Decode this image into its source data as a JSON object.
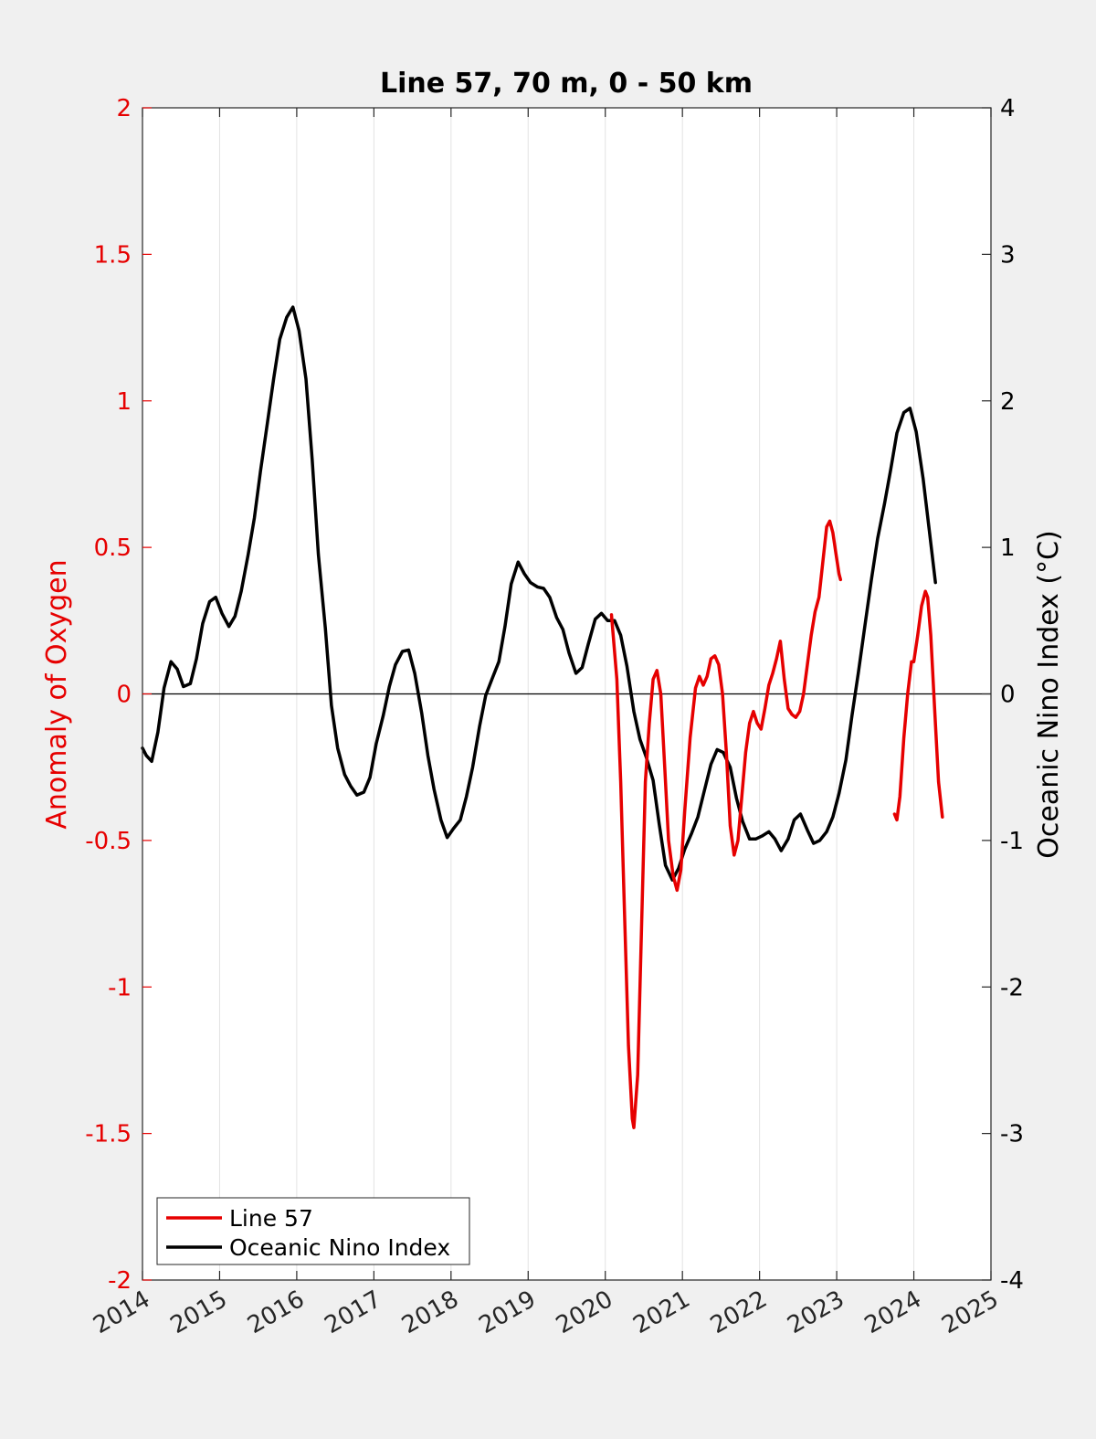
{
  "chart_data": {
    "type": "line",
    "title": "Line 57, 70 m, 0 - 50 km",
    "xlabel": "",
    "ylabel_left": "Anomaly of Oxygen",
    "ylabel_right": "Oceanic Nino Index (°C)",
    "xlim": [
      2014,
      2025
    ],
    "ylim_left": [
      -2,
      2
    ],
    "ylim_right": [
      -4,
      4
    ],
    "x_ticks": [
      "2014",
      "2015",
      "2016",
      "2017",
      "2018",
      "2019",
      "2020",
      "2021",
      "2022",
      "2023",
      "2024",
      "2025"
    ],
    "y_left_ticks": [
      "-2",
      "-1.5",
      "-1",
      "-0.5",
      "0",
      "0.5",
      "1",
      "1.5",
      "2"
    ],
    "y_right_ticks": [
      "-4",
      "-3",
      "-2",
      "-1",
      "0",
      "1",
      "2",
      "3",
      "4"
    ],
    "grid": "vertical",
    "legend_position": "bottom-left",
    "colors": {
      "line57": "#e60000",
      "oni": "#000000",
      "left_axis": "#e60000",
      "right_axis": "#000000"
    },
    "series": [
      {
        "name": "Line 57",
        "axis": "left",
        "segments": [
          [
            [
              2020.08,
              0.27
            ],
            [
              2020.15,
              0.05
            ],
            [
              2020.2,
              -0.3
            ],
            [
              2020.25,
              -0.75
            ],
            [
              2020.3,
              -1.2
            ],
            [
              2020.35,
              -1.45
            ],
            [
              2020.37,
              -1.48
            ],
            [
              2020.42,
              -1.3
            ],
            [
              2020.47,
              -0.8
            ],
            [
              2020.52,
              -0.3
            ],
            [
              2020.57,
              -0.1
            ],
            [
              2020.62,
              0.05
            ],
            [
              2020.67,
              0.08
            ],
            [
              2020.72,
              0.0
            ],
            [
              2020.77,
              -0.25
            ],
            [
              2020.82,
              -0.5
            ],
            [
              2020.88,
              -0.62
            ],
            [
              2020.93,
              -0.67
            ],
            [
              2020.98,
              -0.6
            ],
            [
              2021.03,
              -0.4
            ],
            [
              2021.1,
              -0.15
            ],
            [
              2021.17,
              0.02
            ],
            [
              2021.22,
              0.06
            ],
            [
              2021.27,
              0.03
            ],
            [
              2021.32,
              0.06
            ],
            [
              2021.37,
              0.12
            ],
            [
              2021.42,
              0.13
            ],
            [
              2021.47,
              0.1
            ],
            [
              2021.52,
              0.0
            ],
            [
              2021.57,
              -0.2
            ],
            [
              2021.62,
              -0.45
            ],
            [
              2021.67,
              -0.55
            ],
            [
              2021.72,
              -0.5
            ],
            [
              2021.77,
              -0.35
            ],
            [
              2021.82,
              -0.2
            ],
            [
              2021.87,
              -0.1
            ],
            [
              2021.92,
              -0.06
            ],
            [
              2021.97,
              -0.1
            ],
            [
              2022.02,
              -0.12
            ],
            [
              2022.07,
              -0.05
            ],
            [
              2022.12,
              0.03
            ],
            [
              2022.17,
              0.07
            ],
            [
              2022.22,
              0.12
            ],
            [
              2022.27,
              0.18
            ],
            [
              2022.32,
              0.05
            ],
            [
              2022.37,
              -0.05
            ],
            [
              2022.42,
              -0.07
            ],
            [
              2022.47,
              -0.08
            ],
            [
              2022.52,
              -0.06
            ],
            [
              2022.57,
              0.0
            ],
            [
              2022.62,
              0.1
            ],
            [
              2022.67,
              0.2
            ],
            [
              2022.72,
              0.28
            ],
            [
              2022.77,
              0.33
            ],
            [
              2022.82,
              0.45
            ],
            [
              2022.87,
              0.57
            ],
            [
              2022.91,
              0.59
            ],
            [
              2022.95,
              0.55
            ],
            [
              2022.99,
              0.48
            ],
            [
              2023.03,
              0.41
            ],
            [
              2023.05,
              0.39
            ]
          ],
          [
            [
              2023.75,
              -0.41
            ],
            [
              2023.78,
              -0.43
            ],
            [
              2023.82,
              -0.35
            ],
            [
              2023.87,
              -0.15
            ],
            [
              2023.92,
              0.0
            ],
            [
              2023.97,
              0.11
            ],
            [
              2024.0,
              0.11
            ],
            [
              2024.05,
              0.2
            ],
            [
              2024.1,
              0.3
            ],
            [
              2024.15,
              0.35
            ],
            [
              2024.18,
              0.33
            ],
            [
              2024.22,
              0.2
            ],
            [
              2024.27,
              -0.05
            ],
            [
              2024.32,
              -0.3
            ],
            [
              2024.37,
              -0.42
            ]
          ]
        ]
      },
      {
        "name": "Oceanic Nino Index",
        "axis": "right",
        "segments": [
          [
            [
              2014.0,
              -0.37
            ],
            [
              2014.05,
              -0.42
            ],
            [
              2014.12,
              -0.46
            ],
            [
              2014.2,
              -0.26
            ],
            [
              2014.28,
              0.04
            ],
            [
              2014.37,
              0.22
            ],
            [
              2014.45,
              0.17
            ],
            [
              2014.53,
              0.05
            ],
            [
              2014.62,
              0.07
            ],
            [
              2014.7,
              0.24
            ],
            [
              2014.78,
              0.48
            ],
            [
              2014.87,
              0.63
            ],
            [
              2014.95,
              0.66
            ],
            [
              2015.03,
              0.55
            ],
            [
              2015.12,
              0.46
            ],
            [
              2015.2,
              0.53
            ],
            [
              2015.28,
              0.7
            ],
            [
              2015.37,
              0.95
            ],
            [
              2015.45,
              1.2
            ],
            [
              2015.53,
              1.52
            ],
            [
              2015.62,
              1.85
            ],
            [
              2015.7,
              2.15
            ],
            [
              2015.78,
              2.42
            ],
            [
              2015.87,
              2.57
            ],
            [
              2015.95,
              2.64
            ],
            [
              2016.03,
              2.48
            ],
            [
              2016.12,
              2.15
            ],
            [
              2016.2,
              1.6
            ],
            [
              2016.28,
              0.95
            ],
            [
              2016.37,
              0.45
            ],
            [
              2016.45,
              -0.08
            ],
            [
              2016.53,
              -0.37
            ],
            [
              2016.62,
              -0.55
            ],
            [
              2016.7,
              -0.63
            ],
            [
              2016.78,
              -0.69
            ],
            [
              2016.87,
              -0.67
            ],
            [
              2016.95,
              -0.57
            ],
            [
              2017.03,
              -0.34
            ],
            [
              2017.12,
              -0.15
            ],
            [
              2017.2,
              0.05
            ],
            [
              2017.28,
              0.2
            ],
            [
              2017.37,
              0.29
            ],
            [
              2017.45,
              0.3
            ],
            [
              2017.53,
              0.14
            ],
            [
              2017.62,
              -0.13
            ],
            [
              2017.7,
              -0.42
            ],
            [
              2017.78,
              -0.65
            ],
            [
              2017.87,
              -0.86
            ],
            [
              2017.95,
              -0.98
            ],
            [
              2018.03,
              -0.92
            ],
            [
              2018.12,
              -0.86
            ],
            [
              2018.2,
              -0.7
            ],
            [
              2018.28,
              -0.5
            ],
            [
              2018.37,
              -0.22
            ],
            [
              2018.45,
              -0.01
            ],
            [
              2018.53,
              0.1
            ],
            [
              2018.62,
              0.22
            ],
            [
              2018.7,
              0.46
            ],
            [
              2018.78,
              0.75
            ],
            [
              2018.87,
              0.9
            ],
            [
              2018.95,
              0.82
            ],
            [
              2019.03,
              0.76
            ],
            [
              2019.12,
              0.73
            ],
            [
              2019.2,
              0.72
            ],
            [
              2019.28,
              0.66
            ],
            [
              2019.37,
              0.52
            ],
            [
              2019.45,
              0.44
            ],
            [
              2019.53,
              0.28
            ],
            [
              2019.62,
              0.14
            ],
            [
              2019.7,
              0.18
            ],
            [
              2019.78,
              0.34
            ],
            [
              2019.87,
              0.51
            ],
            [
              2019.95,
              0.55
            ],
            [
              2020.03,
              0.5
            ],
            [
              2020.12,
              0.5
            ],
            [
              2020.2,
              0.4
            ],
            [
              2020.28,
              0.19
            ],
            [
              2020.37,
              -0.12
            ],
            [
              2020.45,
              -0.31
            ],
            [
              2020.53,
              -0.43
            ],
            [
              2020.62,
              -0.59
            ],
            [
              2020.7,
              -0.89
            ],
            [
              2020.78,
              -1.17
            ],
            [
              2020.87,
              -1.27
            ],
            [
              2020.95,
              -1.19
            ],
            [
              2021.03,
              -1.06
            ],
            [
              2021.12,
              -0.95
            ],
            [
              2021.2,
              -0.84
            ],
            [
              2021.28,
              -0.67
            ],
            [
              2021.37,
              -0.48
            ],
            [
              2021.45,
              -0.38
            ],
            [
              2021.53,
              -0.4
            ],
            [
              2021.62,
              -0.5
            ],
            [
              2021.7,
              -0.71
            ],
            [
              2021.78,
              -0.87
            ],
            [
              2021.87,
              -0.99
            ],
            [
              2021.95,
              -0.99
            ],
            [
              2022.03,
              -0.97
            ],
            [
              2022.12,
              -0.94
            ],
            [
              2022.2,
              -0.99
            ],
            [
              2022.28,
              -1.07
            ],
            [
              2022.37,
              -0.99
            ],
            [
              2022.45,
              -0.86
            ],
            [
              2022.53,
              -0.82
            ],
            [
              2022.62,
              -0.93
            ],
            [
              2022.7,
              -1.02
            ],
            [
              2022.78,
              -1.0
            ],
            [
              2022.87,
              -0.94
            ],
            [
              2022.95,
              -0.84
            ],
            [
              2023.03,
              -0.68
            ],
            [
              2023.12,
              -0.45
            ],
            [
              2023.2,
              -0.14
            ],
            [
              2023.28,
              0.14
            ],
            [
              2023.37,
              0.48
            ],
            [
              2023.45,
              0.78
            ],
            [
              2023.53,
              1.06
            ],
            [
              2023.62,
              1.3
            ],
            [
              2023.7,
              1.53
            ],
            [
              2023.78,
              1.78
            ],
            [
              2023.87,
              1.92
            ],
            [
              2023.95,
              1.95
            ],
            [
              2024.03,
              1.79
            ],
            [
              2024.12,
              1.47
            ],
            [
              2024.2,
              1.12
            ],
            [
              2024.28,
              0.76
            ]
          ]
        ]
      }
    ]
  }
}
